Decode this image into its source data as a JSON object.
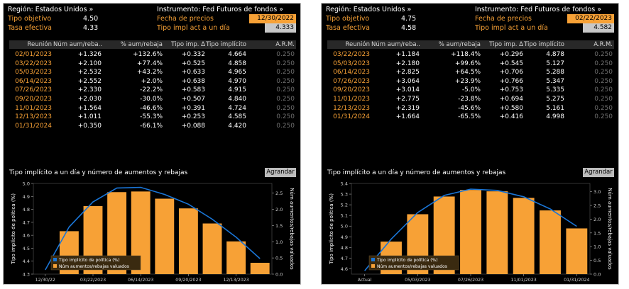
{
  "panels": [
    {
      "region_label": "Región: Estados Unidos »",
      "instrument_label": "Instrumento: Fed Futuros de fondos »",
      "target_rate_label": "Tipo objetivo",
      "target_rate_value": "4.50",
      "effective_rate_label": "Tasa efectiva",
      "effective_rate_value": "4.33",
      "price_date_label": "Fecha de precios",
      "price_date_value": "12/30/2022",
      "implied_rate_label": "Tipo impl act a un día",
      "implied_rate_value": "4.333",
      "table": {
        "headers": [
          "Reunión",
          "Núm aum/reba..",
          "% aum/rebaja",
          "Tipo imp. Δ",
          "Tipo implícito",
          "A.R.M."
        ],
        "rows": [
          [
            "02/01/2023",
            "+1.326",
            "+132.6%",
            "+0.332",
            "4.664",
            "0.250"
          ],
          [
            "03/22/2023",
            "+2.100",
            "+77.4%",
            "+0.525",
            "4.858",
            "0.250"
          ],
          [
            "05/03/2023",
            "+2.532",
            "+43.2%",
            "+0.633",
            "4.965",
            "0.250"
          ],
          [
            "06/14/2023",
            "+2.552",
            "+2.0%",
            "+0.638",
            "4.970",
            "0.250"
          ],
          [
            "07/26/2023",
            "+2.330",
            "-22.2%",
            "+0.583",
            "4.915",
            "0.250"
          ],
          [
            "09/20/2023",
            "+2.030",
            "-30.0%",
            "+0.507",
            "4.840",
            "0.250"
          ],
          [
            "11/01/2023",
            "+1.564",
            "-46.6%",
            "+0.391",
            "4.724",
            "0.250"
          ],
          [
            "12/13/2023",
            "+1.011",
            "-55.3%",
            "+0.253",
            "4.585",
            "0.250"
          ],
          [
            "01/31/2024",
            "+0.350",
            "-66.1%",
            "+0.088",
            "4.420",
            "0.250"
          ]
        ]
      },
      "chart_title": "Tipo implícito a un día y número de aumentos y rebajas",
      "expand_label": "Agrandar",
      "chart_data": {
        "type": "bar",
        "ylabel": "Tipo implícito de política (%)",
        "y2label": "Núm aumentos/rebajas valuados",
        "left_ticks": [
          "4.3",
          "4.4",
          "4.5",
          "4.6",
          "4.7",
          "4.8",
          "4.9",
          "5.0"
        ],
        "right_ticks": [
          "0.0",
          "0.5",
          "1.0",
          "1.5",
          "2.0",
          "2.5"
        ],
        "ylim": [
          4.3,
          5.0
        ],
        "y2lim": [
          0,
          2.8
        ],
        "x_ticks": [
          "12/30/22",
          "03/22/2023",
          "06/14/2023",
          "09/20/2023",
          "12/13/2023"
        ],
        "x_tick_positions": [
          0,
          2,
          4,
          6,
          8
        ],
        "bars": [
          0,
          1.326,
          2.1,
          2.532,
          2.552,
          2.33,
          2.03,
          1.564,
          1.011,
          0.35
        ],
        "line": [
          4.333,
          4.664,
          4.858,
          4.965,
          4.97,
          4.915,
          4.84,
          4.724,
          4.585,
          4.42
        ],
        "legend": [
          "Tipo implícito de política (%)",
          "Núm aumentos/rebajas valuados"
        ],
        "line_color": "#1a75d6",
        "bar_color": "#f7a136"
      }
    },
    {
      "region_label": "Región: Estados Unidos »",
      "instrument_label": "Instrumento: Fed Futuros de fondos »",
      "target_rate_label": "Tipo objetivo",
      "target_rate_value": "4.75",
      "effective_rate_label": "Tasa efectiva",
      "effective_rate_value": "4.58",
      "price_date_label": "Fecha de precios",
      "price_date_value": "02/22/2023",
      "implied_rate_label": "Tipo impl act a un día",
      "implied_rate_value": "4.582",
      "table": {
        "headers": [
          "Reunión",
          "Núm aum/reba..",
          "% aum/rebaja",
          "Tipo imp. Δ",
          "Tipo implícito",
          "A.R.M."
        ],
        "rows": [
          [
            "03/22/2023",
            "+1.184",
            "+118.4%",
            "+0.296",
            "4.878",
            "0.250"
          ],
          [
            "05/03/2023",
            "+2.180",
            "+99.6%",
            "+0.545",
            "5.127",
            "0.250"
          ],
          [
            "06/14/2023",
            "+2.825",
            "+64.5%",
            "+0.706",
            "5.288",
            "0.250"
          ],
          [
            "07/26/2023",
            "+3.064",
            "+23.9%",
            "+0.766",
            "5.347",
            "0.250"
          ],
          [
            "09/20/2023",
            "+3.014",
            "-5.0%",
            "+0.753",
            "5.335",
            "0.250"
          ],
          [
            "11/01/2023",
            "+2.775",
            "-23.8%",
            "+0.694",
            "5.275",
            "0.250"
          ],
          [
            "12/13/2023",
            "+2.319",
            "-45.6%",
            "+0.580",
            "5.161",
            "0.250"
          ],
          [
            "01/31/2024",
            "+1.664",
            "-65.5%",
            "+0.416",
            "4.998",
            "0.250"
          ]
        ]
      },
      "chart_title": "Tipo implícito a un día y número de aumentos y rebajas",
      "expand_label": "Agrandar",
      "chart_data": {
        "type": "bar",
        "ylabel": "Tipo implícito de política (%)",
        "y2label": "Núm aumentos/rebajas valuados",
        "left_ticks": [
          "4.6",
          "4.7",
          "4.8",
          "4.9",
          "5.0",
          "5.1",
          "5.2",
          "5.3",
          "5.4"
        ],
        "right_ticks": [
          "0.0",
          "0.5",
          "1.0",
          "1.5",
          "2.0",
          "2.5",
          "3.0"
        ],
        "ylim": [
          4.55,
          5.4
        ],
        "y2lim": [
          0,
          3.3
        ],
        "x_ticks": [
          "Actual",
          "05/03/2023",
          "07/26/2023",
          "11/01/2023",
          "01/31/2024"
        ],
        "x_tick_positions": [
          0,
          2,
          4,
          6,
          8
        ],
        "bars": [
          0,
          1.184,
          2.18,
          2.825,
          3.064,
          3.014,
          2.775,
          2.319,
          1.664
        ],
        "line": [
          4.582,
          4.878,
          5.127,
          5.288,
          5.347,
          5.335,
          5.275,
          5.161,
          4.998
        ],
        "legend": [
          "Tipo implícito de política (%)",
          "Núm aumentos/rebajas valuados"
        ],
        "line_color": "#1a75d6",
        "bar_color": "#f7a136"
      }
    }
  ]
}
